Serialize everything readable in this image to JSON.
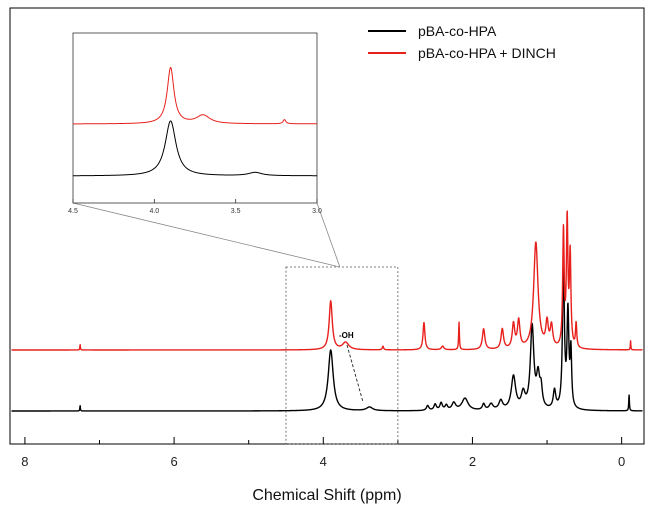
{
  "chart_data": {
    "type": "line",
    "xlabel": "Chemical Shift (ppm)",
    "ylabel": "",
    "xlim": [
      8.2,
      -0.3
    ],
    "x_ticks": [
      "8",
      "6",
      "4",
      "2",
      "0"
    ],
    "x_tick_values": [
      8,
      6,
      4,
      2,
      0
    ],
    "x_reversed": true,
    "legend_position": "top-right",
    "colors": {
      "pBA-co-HPA": "#000000",
      "pBA-co-HPA + DINCH": "#e8201c"
    },
    "series": [
      {
        "name": "pBA-co-HPA",
        "color": "#000000",
        "baseline": 0,
        "peaks": [
          [
            7.26,
            0.09,
            0.004
          ],
          [
            3.9,
            1.0,
            0.04
          ],
          [
            3.38,
            0.06,
            0.05
          ],
          [
            2.6,
            0.08,
            0.02
          ],
          [
            2.5,
            0.1,
            0.02
          ],
          [
            2.42,
            0.12,
            0.02
          ],
          [
            2.35,
            0.08,
            0.02
          ],
          [
            2.25,
            0.12,
            0.03
          ],
          [
            2.1,
            0.2,
            0.05
          ],
          [
            1.85,
            0.1,
            0.02
          ],
          [
            1.75,
            0.1,
            0.03
          ],
          [
            1.62,
            0.15,
            0.03
          ],
          [
            1.45,
            0.55,
            0.035
          ],
          [
            1.32,
            0.25,
            0.03
          ],
          [
            1.2,
            1.35,
            0.028
          ],
          [
            1.12,
            0.5,
            0.025
          ],
          [
            1.08,
            0.3,
            0.02
          ],
          [
            0.9,
            0.3,
            0.02
          ],
          [
            0.78,
            2.35,
            0.015
          ],
          [
            0.72,
            1.55,
            0.015
          ],
          [
            0.68,
            0.9,
            0.012
          ],
          [
            -0.1,
            0.27,
            0.005
          ]
        ]
      },
      {
        "name": "pBA-co-HPA + DINCH",
        "color": "#e8201c",
        "baseline": 1,
        "peaks": [
          [
            7.26,
            0.09,
            0.004
          ],
          [
            3.9,
            0.8,
            0.025
          ],
          [
            3.7,
            0.12,
            0.05
          ],
          [
            3.2,
            0.06,
            0.01
          ],
          [
            2.65,
            0.45,
            0.015
          ],
          [
            2.4,
            0.06,
            0.02
          ],
          [
            2.18,
            0.45,
            0.006
          ],
          [
            1.85,
            0.34,
            0.02
          ],
          [
            1.6,
            0.33,
            0.02
          ],
          [
            1.45,
            0.4,
            0.02
          ],
          [
            1.38,
            0.45,
            0.02
          ],
          [
            1.15,
            1.75,
            0.035
          ],
          [
            1.0,
            0.4,
            0.02
          ],
          [
            0.94,
            0.35,
            0.02
          ],
          [
            0.78,
            1.9,
            0.012
          ],
          [
            0.73,
            2.05,
            0.012
          ],
          [
            0.69,
            1.5,
            0.012
          ],
          [
            0.61,
            0.4,
            0.01
          ],
          [
            -0.12,
            0.15,
            0.004
          ]
        ]
      }
    ],
    "annotations": [
      {
        "text": "-OH",
        "x": 3.65
      }
    ],
    "zoom_region": [
      4.5,
      3.0
    ],
    "inset": {
      "xlim": [
        4.5,
        3.0
      ],
      "x_ticks": [
        "4.5",
        "4.0",
        "3.5",
        "3.0"
      ],
      "x_tick_values": [
        4.5,
        4.0,
        3.5,
        3.0
      ]
    }
  }
}
